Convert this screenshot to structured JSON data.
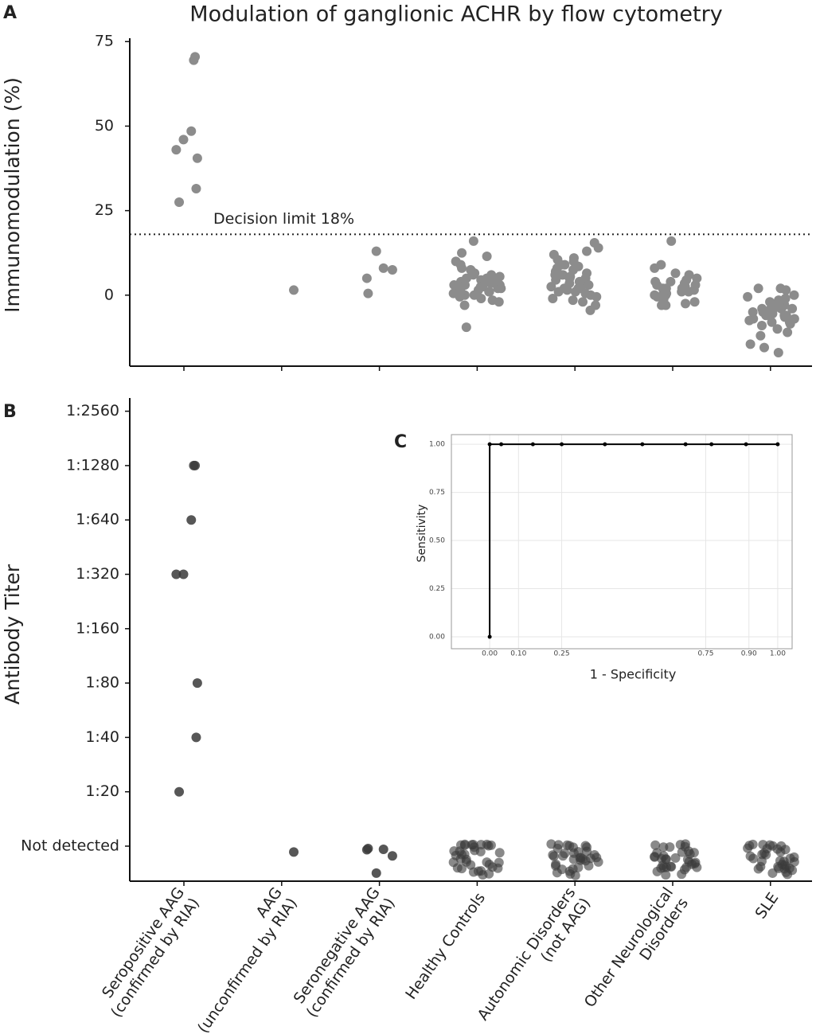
{
  "chart_data": [
    {
      "type": "strip",
      "panel_label": "A",
      "title": "Modulation of ganglionic ACHR by flow cytometry",
      "ylabel": "Immunomodulation (%)",
      "categories": [
        [
          "Seropositive AAG",
          "(confirmed by RIA)"
        ],
        [
          "AAG",
          "(unconfirmed by RIA)"
        ],
        [
          "Seronegative AAG",
          "(confirmed by RIA)"
        ],
        [
          "Healthy Controls"
        ],
        [
          "Autonomic Disorders",
          "(not AAG)"
        ],
        [
          "Other Neurological",
          "Disorders"
        ],
        [
          "SLE"
        ]
      ],
      "ylim": [
        -21,
        76
      ],
      "yticks": [
        0,
        25,
        50,
        75
      ],
      "color": "#8c8c8c",
      "hline": {
        "value": 18,
        "label": "Decision limit 18%"
      },
      "values": [
        [
          69.5,
          70.5,
          48.5,
          46,
          43,
          40.5,
          31.5,
          27.5
        ],
        [
          1.5
        ],
        [
          13,
          8,
          7.5,
          5,
          0.5
        ],
        [
          16,
          12.5,
          11.5,
          10,
          9,
          8,
          7.5,
          7,
          6.5,
          6,
          5.5,
          5,
          5,
          4.5,
          4,
          4,
          3.5,
          3,
          3,
          2.5,
          2.5,
          2,
          2,
          1.5,
          1,
          1,
          0.5,
          0,
          0,
          -0.5,
          -1,
          -1.5,
          -2,
          -3,
          -9.5,
          3,
          4,
          6,
          1,
          2
        ],
        [
          15.5,
          14,
          13,
          12,
          11,
          10.5,
          10,
          9,
          8.5,
          8,
          7.5,
          7,
          6.5,
          6,
          6,
          5.5,
          5,
          5,
          4.5,
          4,
          4,
          3.5,
          3,
          3,
          2.5,
          2,
          2,
          1.5,
          1,
          1,
          0.5,
          0,
          -0.5,
          -1,
          -1.5,
          -2,
          -3,
          -4.5,
          9,
          4,
          2,
          6
        ],
        [
          16,
          9,
          8,
          6.5,
          6,
          5,
          4.5,
          4,
          3.5,
          3,
          3,
          2.5,
          2,
          2,
          1.5,
          1,
          1,
          0.5,
          0,
          0,
          -0.5,
          -1,
          -1.5,
          -2,
          -2.5,
          -3,
          -3,
          4,
          2,
          1
        ],
        [
          2,
          2,
          1.5,
          0,
          -0.5,
          -1,
          -1.5,
          -2,
          -2,
          -2.5,
          -3,
          -3,
          -3.5,
          -4,
          -4,
          -4,
          -4.5,
          -5,
          -5,
          -5,
          -5.5,
          -6,
          -6,
          -6.5,
          -7,
          -7,
          -7.5,
          -8,
          -8.5,
          -9,
          -10,
          -11,
          -12,
          -14.5,
          -15.5,
          -17,
          -4,
          -6,
          -3,
          -8
        ]
      ]
    },
    {
      "type": "strip",
      "panel_label": "B",
      "ylabel": "Antibody Titer",
      "color": "#3a3a3a",
      "ycategories": [
        "Not detected",
        "1:20",
        "1:40",
        "1:80",
        "1:160",
        "1:320",
        "1:640",
        "1:1280",
        "1:2560"
      ],
      "values": [
        [
          "1:1280",
          "1:1280",
          "1:640",
          "1:320",
          "1:320",
          "1:80",
          "1:40",
          "1:20"
        ],
        [
          "Not detected"
        ],
        [
          "Not detected",
          "Not detected",
          "Not detected",
          "Not detected",
          "Not detected"
        ],
        [
          "Not detected",
          "Not detected",
          "Not detected",
          "Not detected",
          "Not detected",
          "Not detected",
          "Not detected",
          "Not detected",
          "Not detected",
          "Not detected",
          "Not detected",
          "Not detected",
          "Not detected",
          "Not detected",
          "Not detected",
          "Not detected",
          "Not detected",
          "Not detected",
          "Not detected",
          "Not detected",
          "Not detected",
          "Not detected",
          "Not detected",
          "Not detected",
          "Not detected",
          "Not detected",
          "Not detected",
          "Not detected",
          "Not detected",
          "Not detected",
          "Not detected",
          "Not detected",
          "Not detected",
          "Not detected",
          "Not detected"
        ],
        [
          "Not detected",
          "Not detected",
          "Not detected",
          "Not detected",
          "Not detected",
          "Not detected",
          "Not detected",
          "Not detected",
          "Not detected",
          "Not detected",
          "Not detected",
          "Not detected",
          "Not detected",
          "Not detected",
          "Not detected",
          "Not detected",
          "Not detected",
          "Not detected",
          "Not detected",
          "Not detected",
          "Not detected",
          "Not detected",
          "Not detected",
          "Not detected",
          "Not detected",
          "Not detected",
          "Not detected",
          "Not detected",
          "Not detected",
          "Not detected",
          "Not detected",
          "Not detected",
          "Not detected",
          "Not detected",
          "Not detected"
        ],
        [
          "Not detected",
          "Not detected",
          "Not detected",
          "Not detected",
          "Not detected",
          "Not detected",
          "Not detected",
          "Not detected",
          "Not detected",
          "Not detected",
          "Not detected",
          "Not detected",
          "Not detected",
          "Not detected",
          "Not detected",
          "Not detected",
          "Not detected",
          "Not detected",
          "Not detected",
          "Not detected",
          "Not detected",
          "Not detected",
          "Not detected",
          "Not detected",
          "Not detected",
          "Not detected",
          "Not detected",
          "Not detected",
          "Not detected",
          "Not detected",
          "Not detected",
          "Not detected",
          "Not detected",
          "Not detected",
          "Not detected"
        ],
        [
          "Not detected",
          "Not detected",
          "Not detected",
          "Not detected",
          "Not detected",
          "Not detected",
          "Not detected",
          "Not detected",
          "Not detected",
          "Not detected",
          "Not detected",
          "Not detected",
          "Not detected",
          "Not detected",
          "Not detected",
          "Not detected",
          "Not detected",
          "Not detected",
          "Not detected",
          "Not detected",
          "Not detected",
          "Not detected",
          "Not detected",
          "Not detected",
          "Not detected",
          "Not detected",
          "Not detected",
          "Not detected",
          "Not detected",
          "Not detected",
          "Not detected",
          "Not detected",
          "Not detected",
          "Not detected",
          "Not detected"
        ]
      ]
    },
    {
      "type": "line",
      "panel_label": "C",
      "xlabel": "1 - Specificity",
      "ylabel": "Sensitivity",
      "color": "#000000",
      "grid": true,
      "x": [
        0,
        0,
        0.04,
        0.15,
        0.25,
        0.4,
        0.53,
        0.68,
        0.77,
        0.89,
        1
      ],
      "y": [
        0,
        1,
        1,
        1,
        1,
        1,
        1,
        1,
        1,
        1,
        1
      ],
      "xlim": [
        -0.133,
        1.05
      ],
      "ylim": [
        -0.062,
        1.05
      ],
      "xticks": [
        {
          "value": 0,
          "label": "0.00"
        },
        {
          "value": 0.1,
          "label": "0.10"
        },
        {
          "value": 0.25,
          "label": "0.25"
        },
        {
          "value": 0.75,
          "label": "0.75"
        },
        {
          "value": 0.9,
          "label": "0.90"
        },
        {
          "value": 1,
          "label": "1.00"
        }
      ],
      "yticks": [
        {
          "value": 0,
          "label": "0.00"
        },
        {
          "value": 0.25,
          "label": "0.25"
        },
        {
          "value": 0.5,
          "label": "0.50"
        },
        {
          "value": 0.75,
          "label": "0.75"
        },
        {
          "value": 1,
          "label": "1.00"
        }
      ]
    }
  ]
}
